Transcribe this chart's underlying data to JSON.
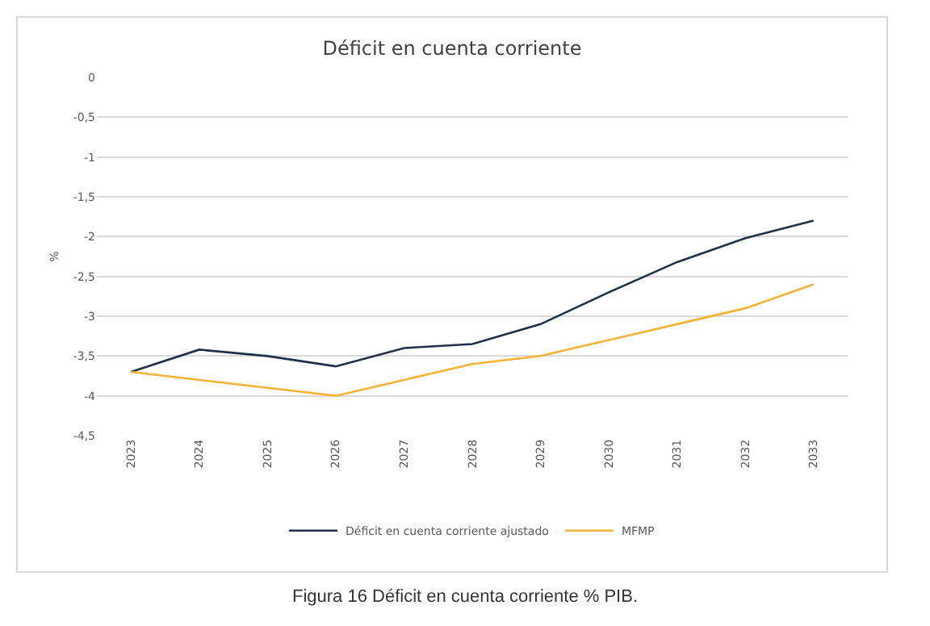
{
  "chart_data": {
    "type": "line",
    "title": "Déficit en cuenta corriente",
    "ylabel": "%",
    "categories": [
      "2023",
      "2024",
      "2025",
      "2026",
      "2027",
      "2028",
      "2029",
      "2030",
      "2031",
      "2032",
      "2033"
    ],
    "series": [
      {
        "name": "Déficit en cuenta corriente ajustado",
        "color": "#1f3048",
        "values": [
          -3.7,
          -3.42,
          -3.5,
          -3.63,
          -3.4,
          -3.35,
          -3.1,
          -2.7,
          -2.32,
          -2.02,
          -1.8
        ]
      },
      {
        "name": "MFMP",
        "color": "#f5b335",
        "values": [
          -3.7,
          -3.8,
          -3.9,
          -4.0,
          -3.8,
          -3.6,
          -3.5,
          -3.3,
          -3.1,
          -2.9,
          -2.6
        ]
      }
    ],
    "ylim": [
      -4.5,
      0
    ],
    "yticks": [
      {
        "value": 0,
        "label": "0"
      },
      {
        "value": -0.5,
        "label": "-0,5"
      },
      {
        "value": -1,
        "label": "-1"
      },
      {
        "value": -1.5,
        "label": "-1,5"
      },
      {
        "value": -2,
        "label": "-2"
      },
      {
        "value": -2.5,
        "label": "-2,5"
      },
      {
        "value": -3,
        "label": "-3"
      },
      {
        "value": -3.5,
        "label": "-3,5"
      },
      {
        "value": -4,
        "label": "-4"
      },
      {
        "value": -4.5,
        "label": "-4,5"
      }
    ],
    "grid": "y",
    "legend": "bottom",
    "marker": "none",
    "line_style": "solid",
    "annotations": [
      "Figura 16 Déficit en cuenta corriente % PIB."
    ]
  }
}
